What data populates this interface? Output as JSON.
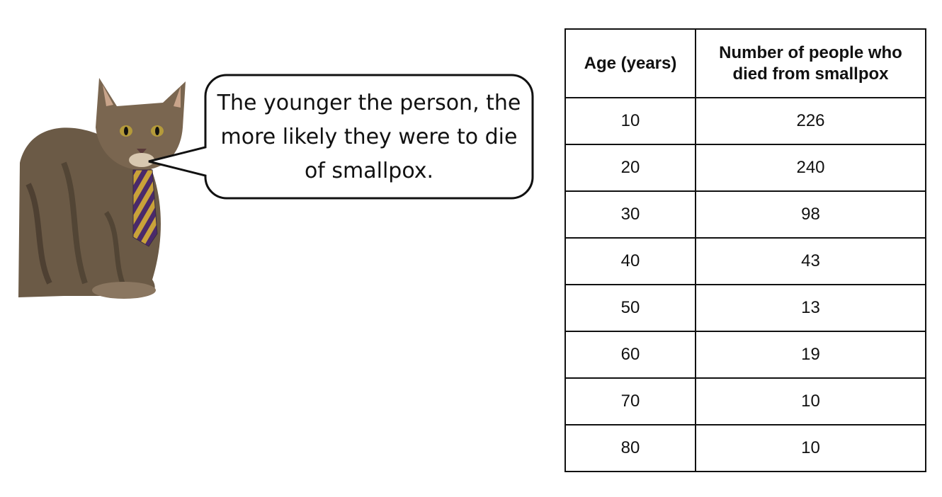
{
  "speech_bubble": {
    "text": "The younger the person, the more likely they were to die of smallpox."
  },
  "table": {
    "header": [
      "Age (years)",
      "Number of people who died from smallpox"
    ],
    "rows": [
      [
        "10",
        "226"
      ],
      [
        "20",
        "240"
      ],
      [
        "30",
        "98"
      ],
      [
        "40",
        "43"
      ],
      [
        "50",
        "13"
      ],
      [
        "60",
        "19"
      ],
      [
        "70",
        "10"
      ],
      [
        "80",
        "10"
      ]
    ]
  }
}
